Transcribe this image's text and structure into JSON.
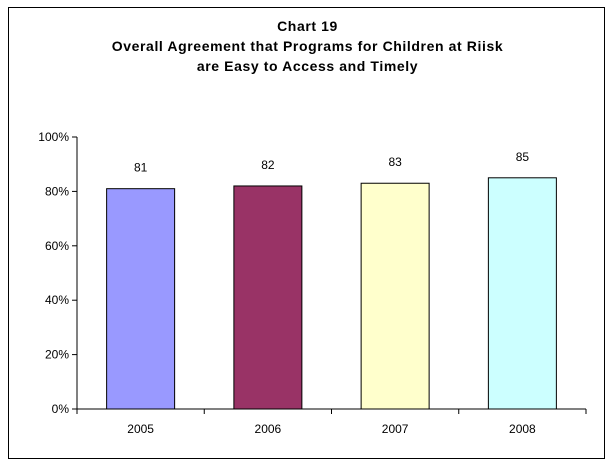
{
  "chart_data": {
    "type": "bar",
    "title_lines": [
      "Chart 19",
      "Overall Agreement that Programs for Children at Riisk",
      "are Easy to Access and Timely"
    ],
    "categories": [
      "2005",
      "2006",
      "2007",
      "2008"
    ],
    "values": [
      81,
      82,
      83,
      85
    ],
    "data_labels": [
      "81",
      "82",
      "83",
      "85"
    ],
    "bar_colors": [
      "#9999ff",
      "#993366",
      "#ffffcc",
      "#ccffff"
    ],
    "ylim": [
      0,
      100
    ],
    "yticks": [
      0,
      20,
      40,
      60,
      80,
      100
    ],
    "ytick_labels": [
      "0%",
      "20%",
      "40%",
      "60%",
      "80%",
      "100%"
    ],
    "grid": false,
    "legend": "none"
  }
}
